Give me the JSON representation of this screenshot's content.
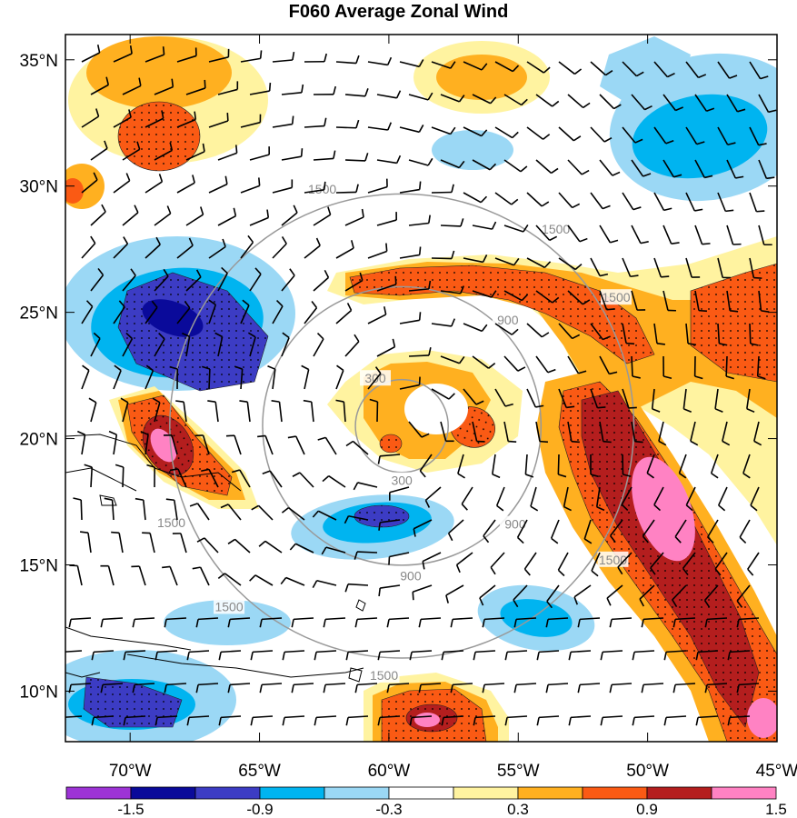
{
  "title": "F060 Average Zonal Wind",
  "map": {
    "lon_range": [
      -72.5,
      -45
    ],
    "lat_range": [
      8,
      36
    ],
    "lon_ticks": [
      {
        "value": -70,
        "label": "70°W"
      },
      {
        "value": -65,
        "label": "65°W"
      },
      {
        "value": -60,
        "label": "60°W"
      },
      {
        "value": -55,
        "label": "55°W"
      },
      {
        "value": -50,
        "label": "50°W"
      },
      {
        "value": -45,
        "label": "45°W"
      }
    ],
    "lat_ticks": [
      {
        "value": 35,
        "label": "35°N"
      },
      {
        "value": 30,
        "label": "30°N"
      },
      {
        "value": 25,
        "label": "25°N"
      },
      {
        "value": 20,
        "label": "20°N"
      },
      {
        "value": 15,
        "label": "15°N"
      },
      {
        "value": 10,
        "label": "10°N"
      }
    ],
    "center": {
      "lon": -59.5,
      "lat": 20.5
    },
    "range_rings_km": [
      300,
      900,
      1500
    ],
    "ring_labels": [
      "300",
      "900",
      "1500"
    ],
    "ring_color": "#999999",
    "coastline_color": "#000000"
  },
  "colorbar": {
    "colors": [
      "#9d33d6",
      "#0a0a9a",
      "#3c3cc4",
      "#00b4f0",
      "#9bd8f5",
      "#ffffff",
      "#fff3a0",
      "#ffb020",
      "#fa5a14",
      "#b41e1e",
      "#ff82c3"
    ],
    "tick_labels": [
      "-1.5",
      "-0.9",
      "-0.3",
      "0.3",
      "0.9",
      "1.5"
    ]
  }
}
